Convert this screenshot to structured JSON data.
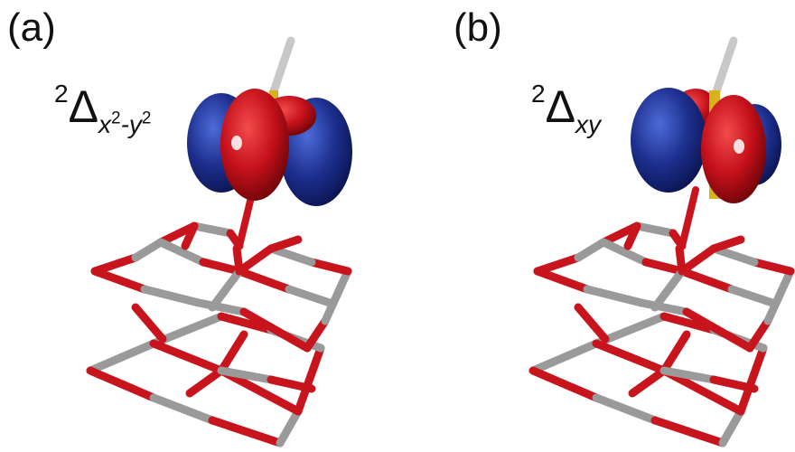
{
  "panels": [
    {
      "letter": "(a)",
      "state": {
        "multiplicity": "2",
        "symbol": "Δ",
        "subscript_x": "x",
        "subscript_x_exp": "2",
        "subscript_sep": "-",
        "subscript_y": "y",
        "subscript_y_exp": "2"
      },
      "orbital": "dx2-y2"
    },
    {
      "letter": "(b)",
      "state": {
        "multiplicity": "2",
        "symbol": "Δ",
        "subscript": "xy"
      },
      "orbital": "dxy"
    }
  ],
  "colors": {
    "lobe_blue": "#1d2f8e",
    "lobe_red": "#c4101a",
    "bond_red": "#c8141c",
    "bond_gray": "#9a9a9a",
    "axis_gray": "#c8c8c8",
    "metal_gold": "#d8b21c"
  }
}
